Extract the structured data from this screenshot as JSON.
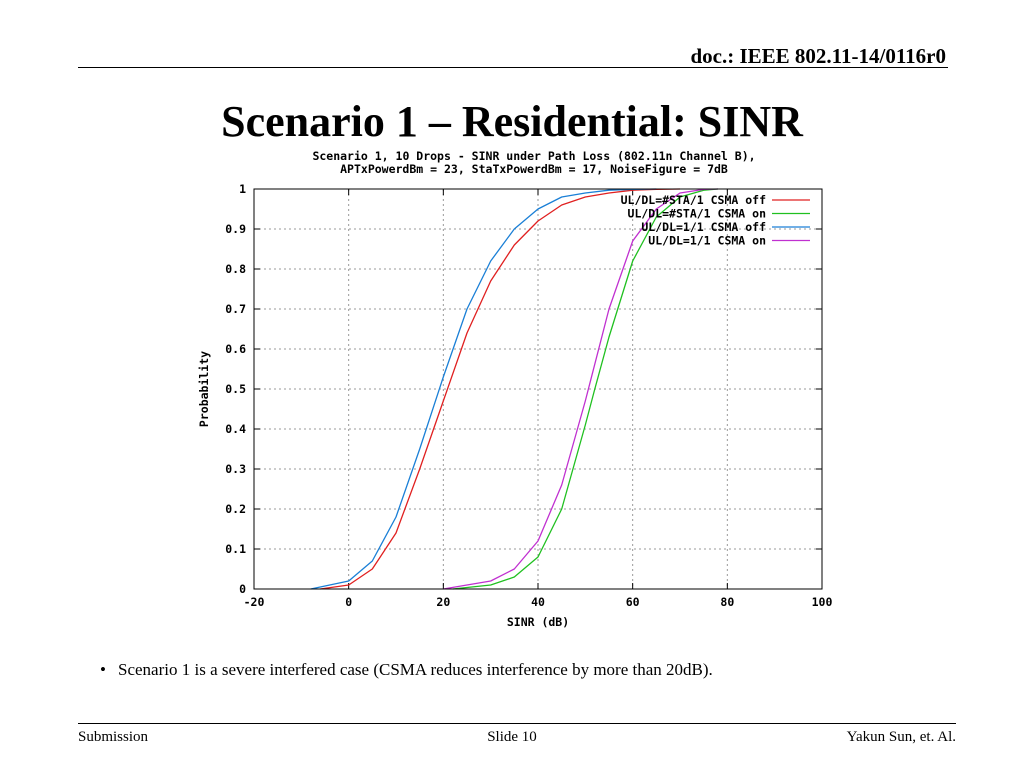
{
  "header": {
    "doc": "doc.: IEEE 802.11-14/0116r0"
  },
  "slide": {
    "title": "Scenario 1 – Residential: SINR",
    "bullet": "Scenario 1 is a severe interfered case (CSMA reduces interference by more than 20dB)."
  },
  "footer": {
    "left": "Submission",
    "center": "Slide 10",
    "right": "Yakun Sun, et. Al."
  },
  "chart_data": {
    "type": "line",
    "title_line1": "Scenario 1, 10 Drops - SINR under Path Loss (802.11n Channel B),",
    "title_line2": "APTxPowerdBm = 23, StaTxPowerdBm = 17, NoiseFigure = 7dB",
    "xlabel": "SINR (dB)",
    "ylabel": "Probability",
    "xlim": [
      -20,
      100
    ],
    "ylim": [
      0,
      1
    ],
    "xticks": [
      -20,
      0,
      20,
      40,
      60,
      80,
      100
    ],
    "yticks": [
      0,
      0.1,
      0.2,
      0.3,
      0.4,
      0.5,
      0.6,
      0.7,
      0.8,
      0.9,
      1
    ],
    "grid": true,
    "legend_position": "top-right",
    "series": [
      {
        "name": "UL/DL=#STA/1 CSMA off",
        "color": "#e02020",
        "x": [
          -6,
          0,
          5,
          10,
          15,
          20,
          25,
          30,
          35,
          40,
          45,
          50,
          55,
          60,
          65,
          70
        ],
        "y": [
          0,
          0.01,
          0.05,
          0.14,
          0.3,
          0.47,
          0.64,
          0.77,
          0.86,
          0.92,
          0.96,
          0.98,
          0.99,
          0.997,
          0.999,
          1
        ]
      },
      {
        "name": "UL/DL=#STA/1 CSMA on",
        "color": "#20c020",
        "x": [
          22,
          30,
          35,
          40,
          45,
          50,
          52,
          55,
          60,
          65,
          70,
          75,
          78
        ],
        "y": [
          0,
          0.01,
          0.03,
          0.08,
          0.2,
          0.41,
          0.5,
          0.63,
          0.82,
          0.93,
          0.98,
          0.997,
          1
        ]
      },
      {
        "name": "UL/DL=1/1 CSMA off",
        "color": "#1a7fd6",
        "x": [
          -8,
          0,
          5,
          10,
          15,
          20,
          25,
          30,
          35,
          40,
          45,
          50,
          55,
          60,
          65
        ],
        "y": [
          0,
          0.02,
          0.07,
          0.18,
          0.35,
          0.53,
          0.7,
          0.82,
          0.9,
          0.95,
          0.98,
          0.99,
          0.997,
          0.999,
          1
        ]
      },
      {
        "name": "UL/DL=1/1 CSMA on",
        "color": "#c030d0",
        "x": [
          20,
          30,
          35,
          40,
          45,
          50,
          55,
          60,
          65,
          70,
          75,
          78
        ],
        "y": [
          0,
          0.02,
          0.05,
          0.12,
          0.26,
          0.47,
          0.7,
          0.87,
          0.95,
          0.99,
          0.999,
          1
        ]
      }
    ]
  }
}
